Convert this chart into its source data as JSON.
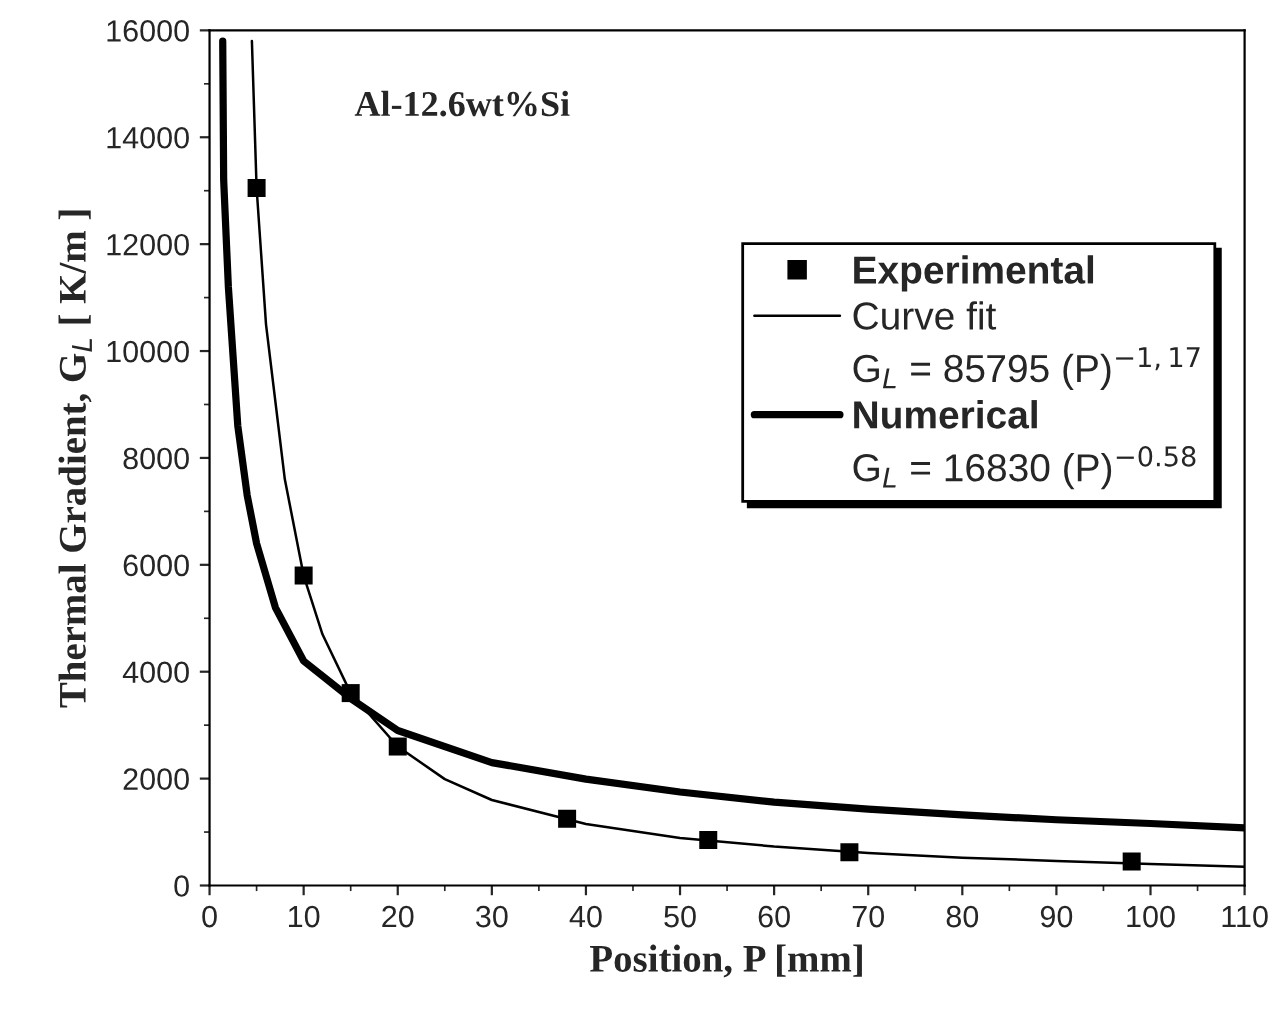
{
  "chart_data": {
    "type": "line",
    "xlabel": "Position, P [mm]",
    "ylabel": "Thermal Gradient, G$_{L}$ [ K/m ]",
    "xlim": [
      0,
      110
    ],
    "xticks": [
      0,
      10,
      20,
      30,
      40,
      50,
      60,
      70,
      80,
      90,
      100,
      110
    ],
    "ylim": [
      0,
      16000
    ],
    "yticks": [
      0,
      2000,
      4000,
      6000,
      8000,
      10000,
      12000,
      14000,
      16000
    ],
    "legend": "right",
    "grid": false,
    "annotations": [
      "Al-12.6wt%Si",
      "G$_{L}$ = 85795 (P)$^{−1,17}$",
      "G$_{L}$ = 16830 (P)$^{−0.58}$"
    ],
    "series": [
      {
        "name": "Experimental",
        "type": "scatter",
        "marker": "square",
        "color": "#000000",
        "x": [
          5,
          10,
          15,
          20,
          38,
          53,
          68,
          98
        ],
        "values": [
          13050,
          5800,
          3600,
          2600,
          1250,
          850,
          620,
          450
        ]
      },
      {
        "name": "Curve fit",
        "color": "#000000",
        "x": [
          4.5,
          5,
          6,
          8,
          10,
          12,
          15,
          20,
          25,
          30,
          40,
          50,
          60,
          70,
          80,
          90,
          100,
          110
        ],
        "values": [
          15800,
          13050,
          10500,
          7600,
          5800,
          4700,
          3600,
          2600,
          1990,
          1600,
          1150,
          890,
          730,
          610,
          520,
          460,
          400,
          350
        ]
      },
      {
        "name": "Numerical",
        "color": "#000000",
        "x": [
          1.4,
          1.5,
          2,
          3,
          4,
          5,
          7,
          10,
          15,
          20,
          30,
          40,
          50,
          60,
          70,
          80,
          90,
          100,
          110
        ],
        "values": [
          15800,
          13200,
          11200,
          8600,
          7300,
          6400,
          5200,
          4200,
          3500,
          2900,
          2300,
          1990,
          1750,
          1560,
          1430,
          1320,
          1230,
          1160,
          1080
        ]
      }
    ]
  }
}
